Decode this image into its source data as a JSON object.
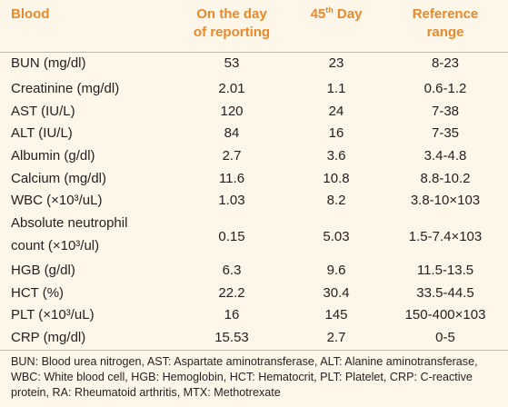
{
  "table": {
    "headers": [
      {
        "line1": "Blood",
        "line2": ""
      },
      {
        "line1": "On the day",
        "line2": "of reporting"
      },
      {
        "line1": "45",
        "sup": "th",
        "line1b": " Day",
        "line2": ""
      },
      {
        "line1": "Reference",
        "line2": "range"
      }
    ],
    "rows": [
      {
        "name": "BUN (mg/dl)",
        "day0": "53",
        "day45": "23",
        "ref": "8-23"
      },
      {
        "name": "Creatinine (mg/dl)",
        "day0": "2.01",
        "day45": "1.1",
        "ref": "0.6-1.2"
      },
      {
        "name": "AST (IU/L)",
        "day0": "120",
        "day45": "24",
        "ref": "7-38"
      },
      {
        "name": "ALT (IU/L)",
        "day0": "84",
        "day45": "16",
        "ref": "7-35"
      },
      {
        "name": "Albumin (g/dl)",
        "day0": "2.7",
        "day45": "3.6",
        "ref": "3.4-4.8"
      },
      {
        "name": "Calcium (mg/dl)",
        "day0": "11.6",
        "day45": "10.8",
        "ref": "8.8-10.2"
      },
      {
        "name": "WBC (×10³/uL)",
        "day0": "1.03",
        "day45": "8.2",
        "ref": "3.8-10×103"
      },
      {
        "name": "Absolute neutrophil",
        "name2": "count (×10³/ul)",
        "day0": "0.15",
        "day45": "5.03",
        "ref": "1.5-7.4×103"
      },
      {
        "name": "HGB (g/dl)",
        "day0": "6.3",
        "day45": "9.6",
        "ref": "11.5-13.5"
      },
      {
        "name": "HCT (%)",
        "day0": "22.2",
        "day45": "30.4",
        "ref": "33.5-44.5"
      },
      {
        "name": "PLT (×10³/uL)",
        "day0": "16",
        "day45": "145",
        "ref": "150-400×103"
      },
      {
        "name": "CRP (mg/dl)",
        "day0": "15.53",
        "day45": "2.7",
        "ref": "0-5"
      }
    ]
  },
  "footnote": "BUN: Blood urea nitrogen, AST: Aspartate aminotransferase, ALT: Alanine aminotransferase, WBC: White blood cell, HGB: Hemoglobin, HCT: Hematocrit, PLT: Platelet, CRP: C-reactive protein, RA: Rheumatoid arthritis, MTX: Methotrexate"
}
